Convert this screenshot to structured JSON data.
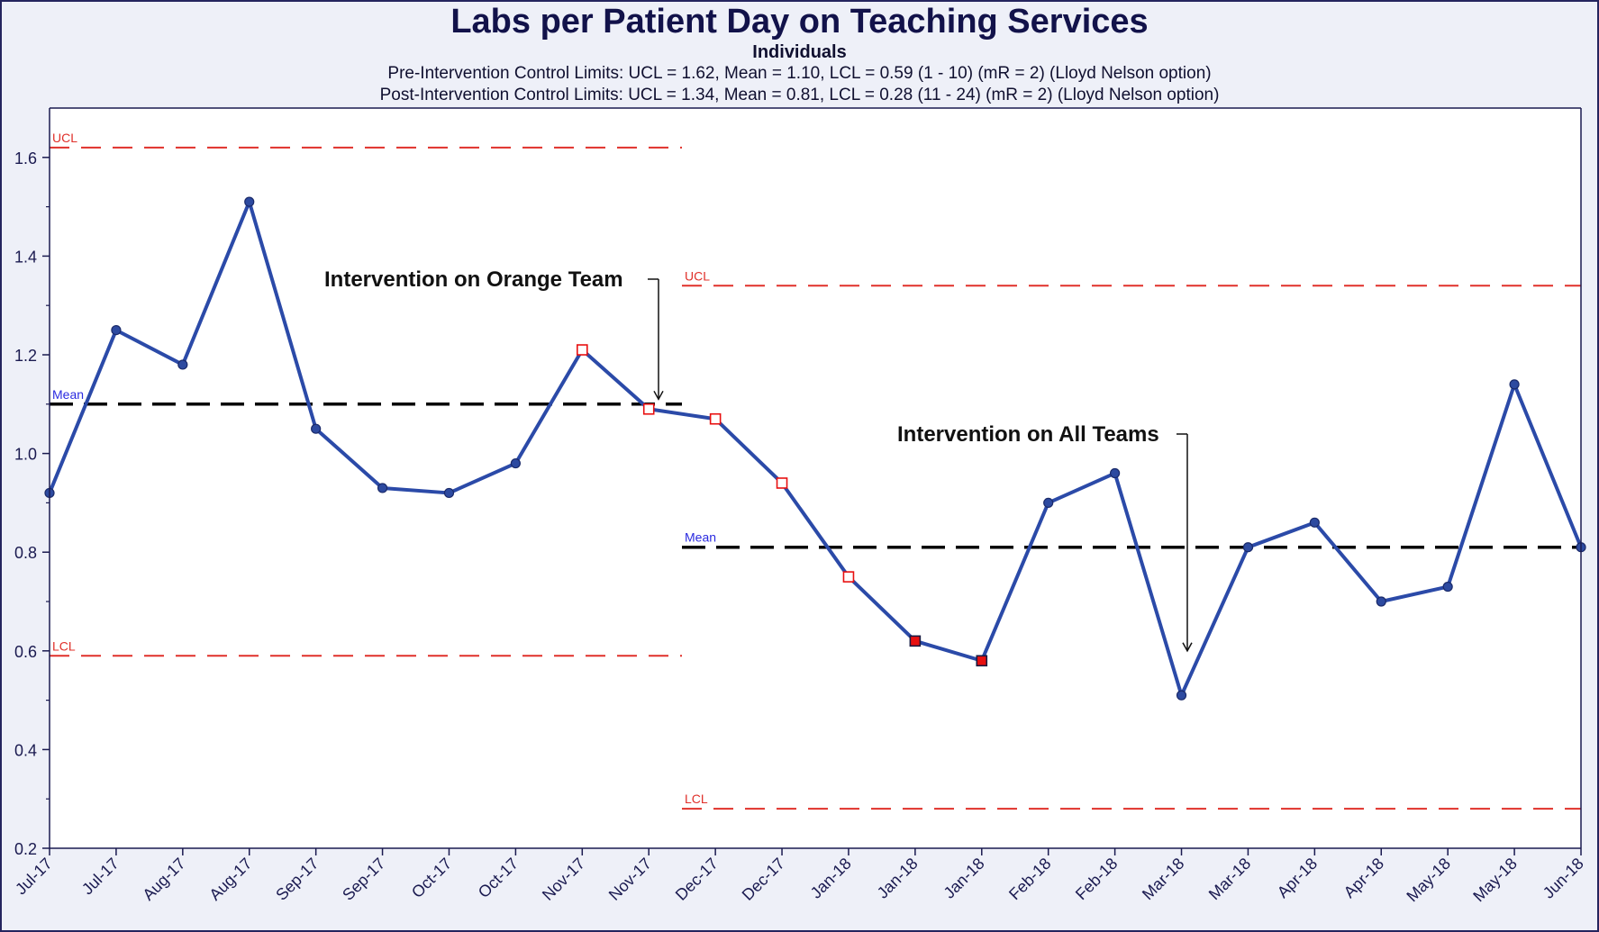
{
  "chart_data": {
    "type": "line",
    "title": "Labs per Patient Day on Teaching Services",
    "subtitle": "Individuals",
    "limits_text": [
      "Pre-Intervention Control Limits: UCL = 1.62, Mean = 1.10, LCL = 0.59 (1 - 10) (mR = 2) (Lloyd Nelson option)",
      "Post-Intervention Control Limits: UCL = 1.34, Mean = 0.81, LCL = 0.28 (11 - 24) (mR = 2) (Lloyd Nelson option)"
    ],
    "categories": [
      "Jul-17",
      "Jul-17",
      "Aug-17",
      "Aug-17",
      "Sep-17",
      "Sep-17",
      "Oct-17",
      "Oct-17",
      "Nov-17",
      "Nov-17",
      "Dec-17",
      "Dec-17",
      "Jan-18",
      "Jan-18",
      "Jan-18",
      "Feb-18",
      "Feb-18",
      "Mar-18",
      "Mar-18",
      "Apr-18",
      "Apr-18",
      "May-18",
      "May-18",
      "Jun-18"
    ],
    "values": [
      0.92,
      1.25,
      1.18,
      1.51,
      1.05,
      0.93,
      0.92,
      0.98,
      1.21,
      1.09,
      1.07,
      0.94,
      0.75,
      0.62,
      0.58,
      0.9,
      0.96,
      0.51,
      0.81,
      0.86,
      0.7,
      0.73,
      1.14,
      0.81
    ],
    "point_markers": [
      "circle",
      "circle",
      "circle",
      "circle",
      "circle",
      "circle",
      "circle",
      "circle",
      "open-square",
      "open-square",
      "open-square",
      "open-square",
      "open-square",
      "filled-square",
      "filled-square",
      "circle",
      "circle",
      "circle",
      "circle",
      "circle",
      "circle",
      "circle",
      "circle",
      "circle"
    ],
    "ylim": [
      0.2,
      1.7
    ],
    "yticks": [
      0.2,
      0.4,
      0.6,
      0.8,
      1.0,
      1.2,
      1.4,
      1.6
    ],
    "ytick_labels": [
      "0.2",
      "0.4",
      "0.6",
      "0.8",
      "1.0",
      "1.2",
      "1.4",
      "1.6"
    ],
    "phases": [
      {
        "name": "Pre-Intervention",
        "start_index": 0,
        "end_index": 9,
        "ucl": 1.62,
        "mean": 1.1,
        "lcl": 0.59
      },
      {
        "name": "Post-Intervention",
        "start_index": 9.5,
        "end_index": 23,
        "ucl": 1.34,
        "mean": 0.81,
        "lcl": 0.28
      }
    ],
    "limit_labels": {
      "ucl": "UCL",
      "mean": "Mean",
      "lcl": "LCL"
    },
    "annotations": [
      {
        "text": "Intervention on Orange Team",
        "arrow_x_index": 9.1,
        "arrow_from": 1.3,
        "arrow_to": 1.11
      },
      {
        "text": "Intervention on All Teams",
        "arrow_x_index": 17.1,
        "arrow_from": 0.97,
        "arrow_to": 0.6
      }
    ],
    "colors": {
      "line": "#2b4aa8",
      "marker": "#2d4aa0",
      "limit": "#e0302a",
      "mean": "#000000",
      "flag": "#e81010",
      "annotation": "#111111",
      "axis": "#1a1a50",
      "plot_bg": "#ffffff",
      "label_mean": "#2a2ae0"
    }
  }
}
